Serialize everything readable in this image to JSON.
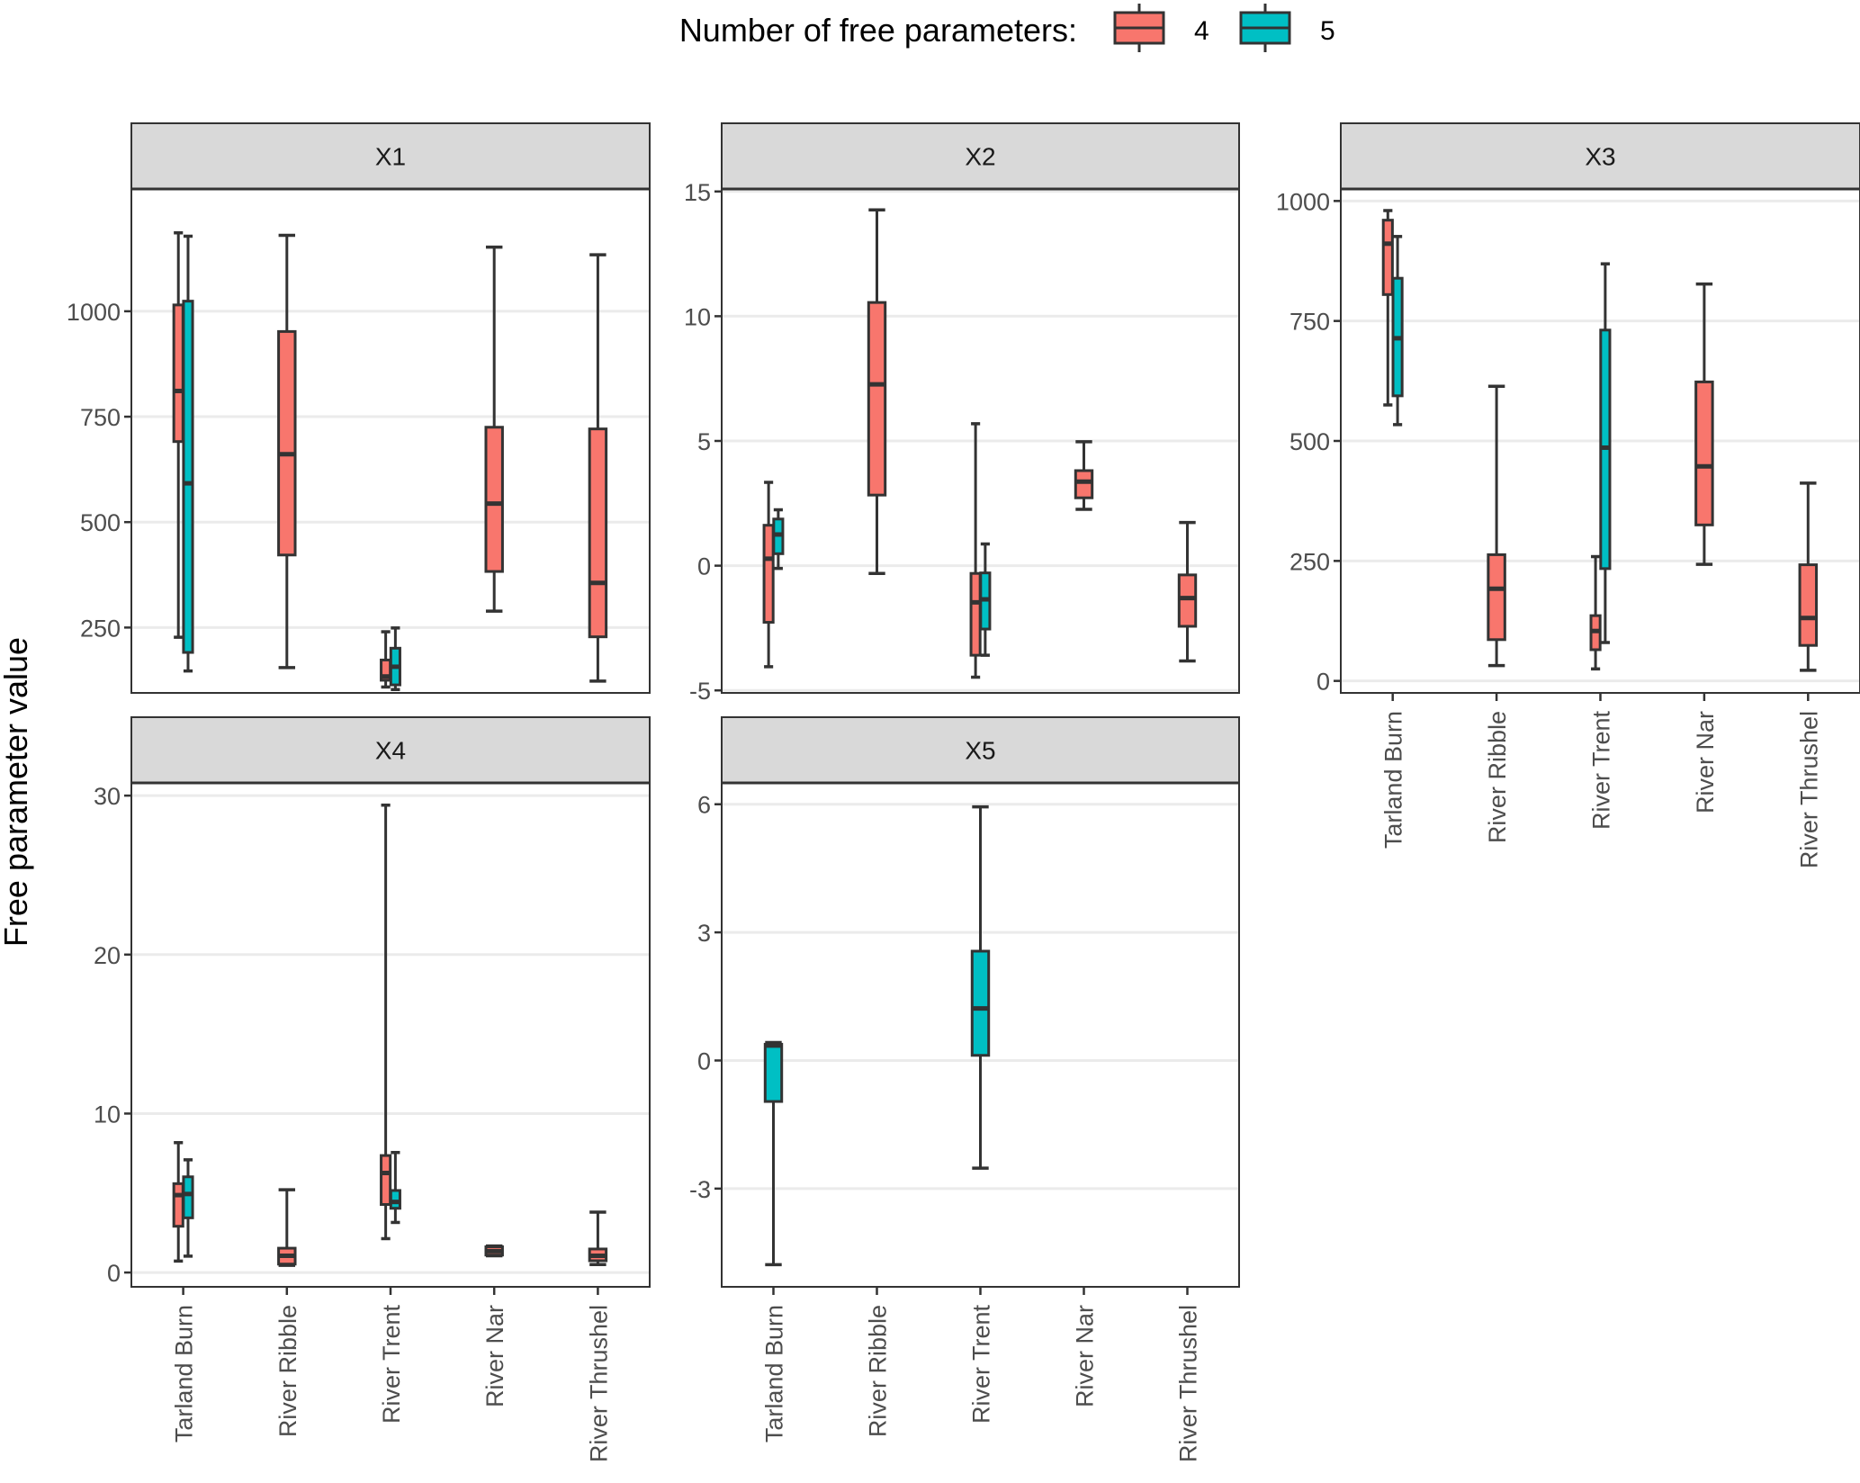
{
  "chart_data": {
    "type": "box",
    "title": "",
    "ylabel": "Free parameter value",
    "xlabel": "",
    "legend": {
      "title": "Number of free parameters:",
      "position": "top",
      "entries": [
        {
          "label": "4",
          "color": "#F8766D"
        },
        {
          "label": "5",
          "color": "#00BFC4"
        }
      ]
    },
    "categories": [
      "Tarland Burn",
      "River Ribble",
      "River Trent",
      "River Nar",
      "River Thrushel"
    ],
    "grid": true,
    "outline_color": "#333333",
    "strip_fill": "#D9D9D9",
    "panels": [
      {
        "name": "X1",
        "ylim": [
          95,
          1290
        ],
        "yticks": [
          250,
          500,
          750,
          1000
        ],
        "show_xticks": false,
        "boxes": [
          {
            "category": "Tarland Burn",
            "group": "4",
            "min": 227,
            "q1": 691,
            "median": 811,
            "q3": 1015,
            "max": 1186
          },
          {
            "category": "Tarland Burn",
            "group": "5",
            "min": 147,
            "q1": 191,
            "median": 592,
            "q3": 1024,
            "max": 1178
          },
          {
            "category": "River Ribble",
            "group": "4",
            "min": 155,
            "q1": 422,
            "median": 661,
            "q3": 952,
            "max": 1180
          },
          {
            "category": "River Trent",
            "group": "4",
            "min": 109,
            "q1": 125,
            "median": 134,
            "q3": 173,
            "max": 240
          },
          {
            "category": "River Trent",
            "group": "5",
            "min": 103,
            "q1": 114,
            "median": 157,
            "q3": 201,
            "max": 249
          },
          {
            "category": "River Nar",
            "group": "4",
            "min": 289,
            "q1": 383,
            "median": 544,
            "q3": 725,
            "max": 1152
          },
          {
            "category": "River Thrushel",
            "group": "4",
            "min": 123,
            "q1": 228,
            "median": 356,
            "q3": 721,
            "max": 1134
          }
        ]
      },
      {
        "name": "X2",
        "ylim": [
          -5.1,
          15.1
        ],
        "yticks": [
          -5,
          0,
          5,
          10,
          15
        ],
        "show_xticks": false,
        "boxes": [
          {
            "category": "Tarland Burn",
            "group": "4",
            "min": -4.05,
            "q1": -2.27,
            "median": 0.28,
            "q3": 1.62,
            "max": 3.34
          },
          {
            "category": "Tarland Burn",
            "group": "5",
            "min": -0.11,
            "q1": 0.48,
            "median": 1.25,
            "q3": 1.87,
            "max": 2.24
          },
          {
            "category": "River Ribble",
            "group": "4",
            "min": -0.31,
            "q1": 2.83,
            "median": 7.27,
            "q3": 10.55,
            "max": 14.26
          },
          {
            "category": "River Trent",
            "group": "4",
            "min": -4.47,
            "q1": -3.59,
            "median": -1.47,
            "q3": -0.31,
            "max": 5.69
          },
          {
            "category": "River Trent",
            "group": "5",
            "min": -3.59,
            "q1": -2.54,
            "median": -1.35,
            "q3": -0.29,
            "max": 0.87
          },
          {
            "category": "River Nar",
            "group": "4",
            "min": 2.26,
            "q1": 2.72,
            "median": 3.37,
            "q3": 3.81,
            "max": 4.97
          },
          {
            "category": "River Thrushel",
            "group": "4",
            "min": -3.82,
            "q1": -2.43,
            "median": -1.3,
            "q3": -0.37,
            "max": 1.73
          }
        ]
      },
      {
        "name": "X3",
        "ylim": [
          -25,
          1025
        ],
        "yticks": [
          0,
          250,
          500,
          750,
          1000
        ],
        "show_xticks": true,
        "boxes": [
          {
            "category": "Tarland Burn",
            "group": "4",
            "min": 575,
            "q1": 805,
            "median": 911,
            "q3": 960,
            "max": 980
          },
          {
            "category": "Tarland Burn",
            "group": "5",
            "min": 534,
            "q1": 594,
            "median": 714,
            "q3": 839,
            "max": 926
          },
          {
            "category": "River Ribble",
            "group": "4",
            "min": 32,
            "q1": 86,
            "median": 192,
            "q3": 263,
            "max": 614
          },
          {
            "category": "River Trent",
            "group": "4",
            "min": 25,
            "q1": 65,
            "median": 104,
            "q3": 136,
            "max": 259
          },
          {
            "category": "River Trent",
            "group": "5",
            "min": 80,
            "q1": 234,
            "median": 486,
            "q3": 731,
            "max": 869
          },
          {
            "category": "River Nar",
            "group": "4",
            "min": 243,
            "q1": 325,
            "median": 447,
            "q3": 623,
            "max": 827
          },
          {
            "category": "River Thrushel",
            "group": "4",
            "min": 22,
            "q1": 74,
            "median": 131,
            "q3": 242,
            "max": 412
          }
        ]
      },
      {
        "name": "X4",
        "ylim": [
          -0.9,
          30.8
        ],
        "yticks": [
          0,
          10,
          20,
          30
        ],
        "show_xticks": true,
        "boxes": [
          {
            "category": "Tarland Burn",
            "group": "4",
            "min": 0.72,
            "q1": 2.91,
            "median": 4.87,
            "q3": 5.59,
            "max": 8.17
          },
          {
            "category": "Tarland Burn",
            "group": "5",
            "min": 1.03,
            "q1": 3.44,
            "median": 4.94,
            "q3": 6.02,
            "max": 7.09
          },
          {
            "category": "River Ribble",
            "group": "4",
            "min": 0.45,
            "q1": 0.53,
            "median": 1.05,
            "q3": 1.53,
            "max": 5.21
          },
          {
            "category": "River Trent",
            "group": "4",
            "min": 2.13,
            "q1": 4.28,
            "median": 6.26,
            "q3": 7.36,
            "max": 29.4
          },
          {
            "category": "River Trent",
            "group": "5",
            "min": 3.15,
            "q1": 4.04,
            "median": 4.44,
            "q3": 5.16,
            "max": 7.55
          },
          {
            "category": "River Nar",
            "group": "4",
            "min": 1.05,
            "q1": 1.1,
            "median": 1.34,
            "q3": 1.62,
            "max": 1.67
          },
          {
            "category": "River Thrushel",
            "group": "4",
            "min": 0.5,
            "q1": 0.74,
            "median": 1.05,
            "q3": 1.48,
            "max": 3.8
          }
        ]
      },
      {
        "name": "X5",
        "ylim": [
          -5.3,
          6.5
        ],
        "yticks": [
          -3,
          0,
          3,
          6
        ],
        "show_xticks": true,
        "boxes": [
          {
            "category": "Tarland Burn",
            "group": "5",
            "min": -4.78,
            "q1": -0.96,
            "median": 0.35,
            "q3": 0.38,
            "max": 0.42
          },
          {
            "category": "River Trent",
            "group": "5",
            "min": -2.52,
            "q1": 0.12,
            "median": 1.22,
            "q3": 2.56,
            "max": 5.94
          }
        ]
      }
    ]
  }
}
